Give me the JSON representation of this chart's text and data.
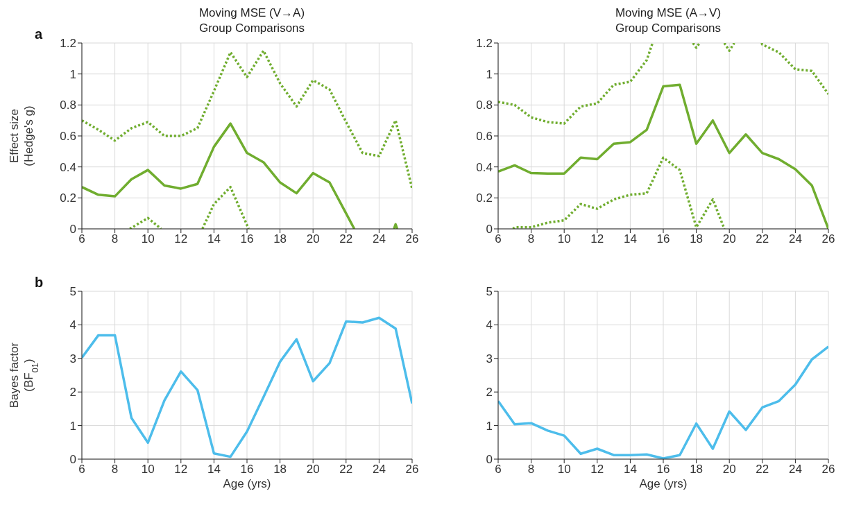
{
  "chart_data": [
    {
      "type": "line",
      "title": "Moving MSE (V→A)",
      "subtitle": "Group Comparisons",
      "ylabel": "Effect size\n(Hedge's g)",
      "annotations": [
        "a"
      ],
      "xlim": [
        6,
        26
      ],
      "xticks": [
        6,
        8,
        10,
        12,
        14,
        16,
        18,
        20,
        22,
        24,
        26
      ],
      "ylim": [
        0,
        1.2
      ],
      "yticks": [
        0,
        0.2,
        0.4,
        0.6,
        0.8,
        1,
        1.2
      ],
      "grid": true,
      "legend": false,
      "series": [
        {
          "color": "#70ad2f",
          "line_style": "solid",
          "x": [
            6,
            7,
            8,
            9,
            10,
            11,
            12,
            13,
            14,
            15,
            16,
            17,
            18,
            19,
            20,
            21,
            22,
            22.5,
            23.5,
            24.9,
            25,
            25.1
          ],
          "values": [
            0.27,
            0.22,
            0.21,
            0.32,
            0.38,
            0.28,
            0.26,
            0.29,
            0.53,
            0.68,
            0.49,
            0.43,
            0.3,
            0.23,
            0.36,
            0.3,
            0.1,
            0,
            null,
            0,
            0.03,
            0
          ]
        },
        {
          "color": "#70ad2f",
          "line_style": "dotted",
          "x": [
            6,
            7,
            8,
            9,
            10,
            11,
            12,
            13,
            14,
            15,
            16,
            17,
            18,
            19,
            20,
            21,
            22,
            23,
            24,
            25,
            26
          ],
          "values": [
            0.7,
            0.64,
            0.57,
            0.65,
            0.69,
            0.6,
            0.6,
            0.65,
            0.89,
            1.14,
            0.98,
            1.15,
            0.94,
            0.79,
            0.96,
            0.9,
            0.69,
            0.49,
            0.47,
            0.7,
            0.26
          ]
        },
        {
          "color": "#70ad2f",
          "line_style": "dotted",
          "x": [
            8.9,
            10,
            10.8,
            12,
            13.3,
            14,
            15,
            16.1
          ],
          "values": [
            0,
            0.07,
            0,
            null,
            0,
            0.16,
            0.27,
            0
          ]
        }
      ]
    },
    {
      "type": "line",
      "title": "Moving MSE (A→V)",
      "subtitle": "Group Comparisons",
      "xlim": [
        6,
        26
      ],
      "xticks": [
        6,
        8,
        10,
        12,
        14,
        16,
        18,
        20,
        22,
        24,
        26
      ],
      "ylim": [
        0,
        1.2
      ],
      "yticks": [
        0,
        0.2,
        0.4,
        0.6,
        0.8,
        1,
        1.2
      ],
      "grid": true,
      "legend": false,
      "series": [
        {
          "color": "#70ad2f",
          "line_style": "solid",
          "x": [
            6,
            7,
            8,
            9,
            10,
            11,
            12,
            13,
            14,
            15,
            16,
            17,
            18,
            19,
            20,
            21,
            22,
            23,
            24,
            25,
            26
          ],
          "values": [
            0.37,
            0.41,
            0.36,
            0.357,
            0.357,
            0.46,
            0.45,
            0.55,
            0.56,
            0.64,
            0.92,
            0.93,
            0.55,
            0.7,
            0.49,
            0.61,
            0.49,
            0.45,
            0.385,
            0.28,
            0
          ]
        },
        {
          "color": "#70ad2f",
          "line_style": "dotted",
          "x": [
            6,
            7,
            8,
            9,
            10,
            11,
            12,
            13,
            14,
            15,
            15.35,
            16.5,
            17.8,
            18,
            18.2,
            19,
            19.7,
            20,
            20.3,
            21,
            21.95,
            22,
            23,
            24,
            25,
            26
          ],
          "values": [
            0.82,
            0.8,
            0.72,
            0.69,
            0.68,
            0.79,
            0.81,
            0.93,
            0.95,
            1.09,
            1.2,
            null,
            1.2,
            1.17,
            1.2,
            null,
            1.2,
            1.15,
            1.2,
            null,
            1.2,
            1.19,
            1.14,
            1.03,
            1.02,
            0.87
          ]
        },
        {
          "color": "#70ad2f",
          "line_style": "dotted",
          "x": [
            6.9,
            7,
            8,
            9,
            10,
            11,
            12,
            13,
            14,
            15,
            16,
            17,
            18,
            19,
            19.7
          ],
          "values": [
            0,
            0.01,
            0.01,
            0.04,
            0.055,
            0.16,
            0.13,
            0.19,
            0.22,
            0.23,
            0.46,
            0.38,
            0.01,
            0.19,
            0
          ]
        }
      ]
    },
    {
      "type": "line",
      "xlabel": "Age (yrs)",
      "ylabel": "Bayes factor\n(BF$_{01}$)",
      "annotations": [
        "b"
      ],
      "xlim": [
        6,
        26
      ],
      "xticks": [
        6,
        8,
        10,
        12,
        14,
        16,
        18,
        20,
        22,
        24,
        26
      ],
      "ylim": [
        0,
        5
      ],
      "yticks": [
        0,
        1,
        2,
        3,
        4,
        5
      ],
      "grid": true,
      "legend": false,
      "series": [
        {
          "color": "#4dbdeb",
          "line_style": "solid",
          "x": [
            6,
            7,
            8,
            9,
            10,
            11,
            12,
            13,
            14,
            15,
            16,
            17,
            18,
            19,
            20,
            21,
            22,
            23,
            24,
            25,
            26
          ],
          "values": [
            3.02,
            3.69,
            3.69,
            1.23,
            0.49,
            1.75,
            2.61,
            2.06,
            0.17,
            0.07,
            0.82,
            1.85,
            2.9,
            3.57,
            2.32,
            2.86,
            4.1,
            4.07,
            4.21,
            3.89,
            1.66
          ]
        }
      ]
    },
    {
      "type": "line",
      "xlabel": "Age (yrs)",
      "xlim": [
        6,
        26
      ],
      "xticks": [
        6,
        8,
        10,
        12,
        14,
        16,
        18,
        20,
        22,
        24,
        26
      ],
      "ylim": [
        0,
        5
      ],
      "yticks": [
        0,
        1,
        2,
        3,
        4,
        5
      ],
      "grid": true,
      "legend": false,
      "series": [
        {
          "color": "#4dbdeb",
          "line_style": "solid",
          "x": [
            6,
            7,
            8,
            9,
            10,
            11,
            12,
            13,
            14,
            15,
            16,
            17,
            18,
            19,
            20,
            21,
            22,
            23,
            24,
            25,
            26
          ],
          "values": [
            1.73,
            1.04,
            1.07,
            0.85,
            0.7,
            0.16,
            0.31,
            0.12,
            0.12,
            0.14,
            0.02,
            0.12,
            1.06,
            0.31,
            1.42,
            0.87,
            1.54,
            1.73,
            2.22,
            2.97,
            3.35
          ]
        }
      ]
    }
  ]
}
